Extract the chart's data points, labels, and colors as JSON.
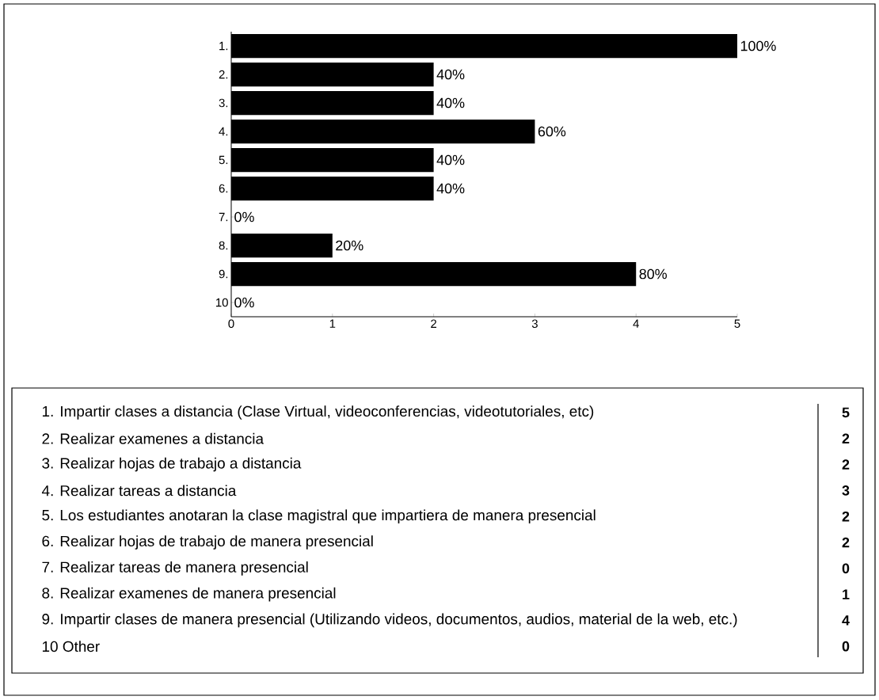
{
  "chart_data": [
    {
      "type": "bar",
      "orientation": "horizontal",
      "categories": [
        "1.",
        "2.",
        "3.",
        "4.",
        "5.",
        "6.",
        "7.",
        "8.",
        "9.",
        "10"
      ],
      "values": [
        5,
        2,
        2,
        3,
        2,
        2,
        0,
        1,
        4,
        0
      ],
      "color": "#000000",
      "xlim": [
        0,
        5
      ],
      "xticks": [
        0,
        1,
        2,
        3,
        4,
        5
      ],
      "annotations": [
        {
          "text": "100%",
          "x": 5,
          "y": "1."
        },
        {
          "text": "40%",
          "x": 2,
          "y": "2."
        },
        {
          "text": "40%",
          "x": 2,
          "y": "3."
        },
        {
          "text": "60%",
          "x": 3,
          "y": "4."
        },
        {
          "text": "40%",
          "x": 2,
          "y": "5."
        },
        {
          "text": "40%",
          "x": 2,
          "y": "6."
        },
        {
          "text": "0%",
          "x": 0,
          "y": "7."
        },
        {
          "text": "20%",
          "x": 1,
          "y": "8."
        },
        {
          "text": "80%",
          "x": 4,
          "y": "9."
        },
        {
          "text": "0%",
          "x": 0,
          "y": "10"
        }
      ]
    },
    {
      "type": "other",
      "categories": [
        "1. Impartir clases a distancia (Clase Virtual, videoconferencias, videotutoriales, etc)",
        "2. Realizar examenes a distancia",
        "3. Realizar hojas de trabajo a distancia",
        "4. Realizar tareas a distancia",
        "5. Los estudiantes anotaran la clase magistral que impartiera de manera presencial",
        "6. Realizar hojas de trabajo de manera presencial",
        "7. Realizar tareas de manera presencial",
        "8. Realizar examenes de manera presencial",
        "9. Impartir clases de manera presencial (Utilizando videos, documentos, audios, material de la web, etc.)",
        "10 Other"
      ],
      "values": [
        5,
        2,
        2,
        3,
        2,
        2,
        0,
        1,
        4,
        0
      ],
      "data_labels": true
    }
  ]
}
